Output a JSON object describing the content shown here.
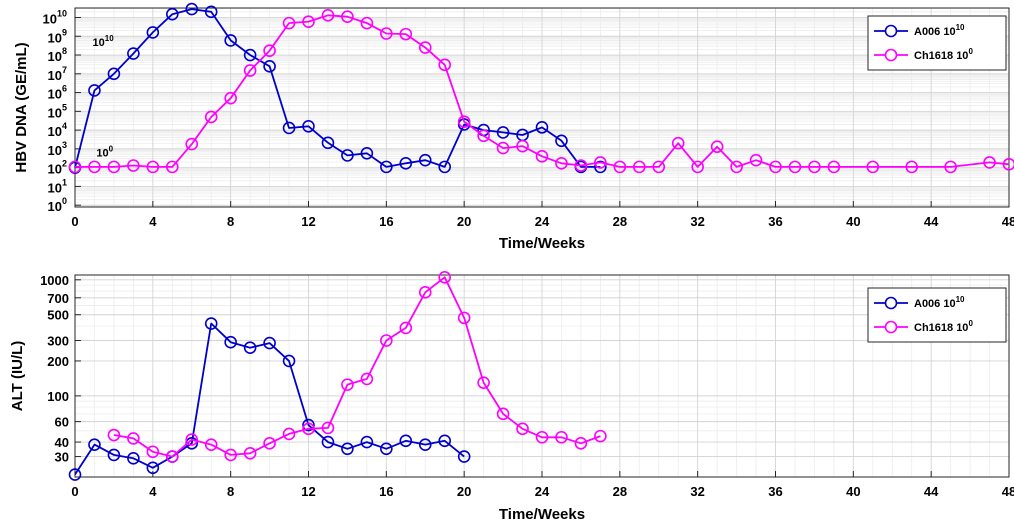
{
  "chart_data": [
    {
      "type": "line",
      "ylabel": "HBV DNA (GE/mL)",
      "xlabel": "Time/Weeks",
      "yscale": "log",
      "xlim": [
        0,
        48
      ],
      "ylim": [
        0.8,
        32000000000.0
      ],
      "grid": true,
      "legend_position": "top-right",
      "xticks": [
        0,
        4,
        8,
        12,
        16,
        20,
        24,
        28,
        32,
        36,
        40,
        44,
        48
      ],
      "xtick_labels": [
        "0",
        "4",
        "8",
        "12",
        "16",
        "20",
        "24",
        "28",
        "32",
        "36",
        "40",
        "44",
        "48"
      ],
      "yticks": [
        1,
        10,
        100,
        1000,
        10000,
        100000,
        1000000,
        10000000,
        100000000,
        1000000000,
        10000000000
      ],
      "ytick_bases": [
        "10",
        "10",
        "10",
        "10",
        "10",
        "10",
        "10",
        "10",
        "10",
        "10",
        "10"
      ],
      "ytick_exps": [
        "0",
        "1",
        "2",
        "3",
        "4",
        "5",
        "6",
        "7",
        "8",
        "9",
        "10"
      ],
      "annotations": [
        {
          "base": "10",
          "exp": "10",
          "x": 0.9,
          "y": 300000000.0
        },
        {
          "base": "10",
          "exp": "0",
          "x": 1.1,
          "y": 400
        }
      ],
      "series": [
        {
          "base": "A006 10",
          "exp": "10",
          "color": "#0000cc",
          "x": [
            0,
            1,
            2,
            3,
            4,
            5,
            6,
            7,
            8,
            9,
            10,
            11,
            12,
            13,
            14,
            15,
            16,
            17,
            18,
            19,
            20,
            21,
            22,
            23,
            24,
            25,
            26,
            27
          ],
          "y": [
            100,
            1300000.0,
            10000000.0,
            120000000.0,
            1600000000.0,
            15000000000.0,
            28000000000.0,
            20000000000.0,
            600000000.0,
            100000000.0,
            25000000.0,
            13000.0,
            16000.0,
            2100.0,
            450,
            580,
            110,
            170,
            250,
            110,
            20000.0,
            10000.0,
            7500.0,
            5500.0,
            14000.0,
            2700.0,
            110,
            110
          ]
        },
        {
          "base": "Ch1618 10",
          "exp": "0",
          "color": "#ff00ff",
          "x": [
            0,
            1,
            2,
            3,
            4,
            5,
            6,
            7,
            8,
            9,
            10,
            11,
            12,
            13,
            14,
            15,
            16,
            17,
            18,
            19,
            20,
            21,
            22,
            23,
            24,
            25,
            26,
            27,
            28,
            29,
            30,
            31,
            32,
            33,
            34,
            35,
            36,
            37,
            38,
            39,
            41,
            43,
            45,
            47,
            48
          ],
          "y": [
            110,
            110,
            110,
            130,
            110,
            110,
            1800.0,
            50000.0,
            500000.0,
            15000000.0,
            170000000.0,
            5000000000.0,
            6000000000.0,
            13000000000.0,
            11000000000.0,
            5000000000.0,
            1400000000.0,
            1300000000.0,
            250000000.0,
            30000000.0,
            28000.0,
            5000.0,
            1100.0,
            1400.0,
            400,
            170,
            130,
            190,
            110,
            110,
            110,
            2000.0,
            110,
            1300.0,
            110,
            250,
            110,
            110,
            110,
            110,
            110,
            110,
            110,
            190,
            150
          ]
        }
      ]
    },
    {
      "type": "line",
      "ylabel": "ALT (IU/L)",
      "xlabel": "Time/Weeks",
      "yscale": "log",
      "xlim": [
        0,
        48
      ],
      "ylim": [
        20,
        1100
      ],
      "grid": true,
      "legend_position": "top-right",
      "xticks": [
        0,
        4,
        8,
        12,
        16,
        20,
        24,
        28,
        32,
        36,
        40,
        44,
        48
      ],
      "xtick_labels": [
        "0",
        "4",
        "8",
        "12",
        "16",
        "20",
        "24",
        "28",
        "32",
        "36",
        "40",
        "44",
        "48"
      ],
      "yticks": [
        30,
        40,
        60,
        100,
        200,
        300,
        500,
        700,
        1000
      ],
      "ytick_labels": [
        "30",
        "40",
        "60",
        "100",
        "200",
        "300",
        "500",
        "700",
        "1000"
      ],
      "series": [
        {
          "base": "A006 10",
          "exp": "10",
          "color": "#0000cc",
          "x": [
            0,
            1,
            2,
            3,
            4,
            5,
            6,
            7,
            8,
            9,
            10,
            11,
            12,
            13,
            14,
            15,
            16,
            17,
            18,
            19,
            20
          ],
          "y": [
            21,
            38,
            31,
            29,
            24,
            30,
            39,
            420,
            290,
            260,
            285,
            200,
            56,
            40,
            35,
            40,
            35,
            41,
            38,
            41,
            30
          ]
        },
        {
          "base": "Ch1618 10",
          "exp": "0",
          "color": "#ff00ff",
          "x": [
            2,
            3,
            4,
            5,
            6,
            7,
            8,
            9,
            10,
            11,
            12,
            13,
            14,
            15,
            16,
            17,
            18,
            19,
            20,
            21,
            22,
            23,
            24,
            25,
            26,
            27
          ],
          "y": [
            46,
            43,
            33,
            30,
            42,
            38,
            31,
            32,
            39,
            47,
            52,
            53,
            125,
            140,
            300,
            385,
            780,
            1050,
            470,
            130,
            70,
            52,
            44,
            44,
            39,
            45
          ]
        }
      ]
    }
  ]
}
